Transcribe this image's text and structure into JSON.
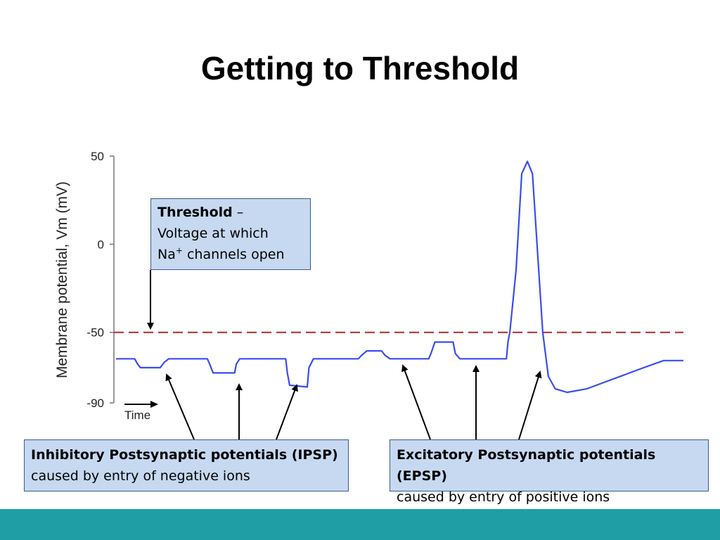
{
  "slide": {
    "title": "Getting to Threshold"
  },
  "callouts": {
    "threshold": {
      "term": "Threshold",
      "dash": " –",
      "line2": "Voltage at which",
      "line3_prefix": "Na",
      "line3_sup": "+",
      "line3_suffix": " channels open"
    },
    "ipsp": {
      "title": "Inhibitory Postsynaptic potentials (IPSP)",
      "subtitle": "caused by entry of negative ions"
    },
    "epsp": {
      "title": "Excitatory Postsynaptic potentials (EPSP)",
      "subtitle": "caused by entry of positive ions"
    }
  },
  "colors": {
    "trace": "#3a4cf0",
    "threshold_line": "#a0302a",
    "bottom_bar": "#1f9ea6",
    "callout_fill": "#c6d9f1"
  },
  "chart_data": {
    "type": "line",
    "ylabel": "Membrane potential, Vm (mV)",
    "xlabel": "Time",
    "yticks": [
      50,
      0,
      -50,
      -90
    ],
    "ylim": [
      -90,
      50
    ],
    "xlim": [
      0,
      100
    ],
    "threshold": -50,
    "series": [
      {
        "x": [
          0,
          3.3,
          3.8,
          4.3,
          7.8,
          8.5,
          9.3,
          16.1,
          16.5,
          17.1,
          20.9,
          21.2,
          21.8,
          29.9,
          30.2,
          30.6,
          33.7,
          34.0,
          34.8,
          42.7,
          43.3,
          44.2,
          46.8,
          47.4,
          48.3,
          55.1,
          55.5,
          56.2,
          59.4,
          59.8,
          60.6,
          68.8,
          69.1,
          69.4,
          70.5,
          71.5,
          72.5,
          73.4,
          74.3,
          75.2,
          76.2,
          77.4,
          79.5,
          83,
          88,
          93,
          96.5,
          100
        ],
        "y": [
          -65,
          -65,
          -68,
          -70,
          -70,
          -67,
          -65,
          -65,
          -68,
          -73,
          -73,
          -68,
          -65,
          -65,
          -73,
          -80,
          -81,
          -70,
          -65,
          -65,
          -63,
          -60.5,
          -60.5,
          -63,
          -65,
          -65,
          -62,
          -55.5,
          -55.5,
          -62,
          -65,
          -65,
          -55,
          -50,
          -15,
          40,
          47,
          40,
          -5,
          -50,
          -75,
          -82,
          -84,
          -82,
          -76,
          -70,
          -66,
          -66
        ]
      }
    ]
  }
}
